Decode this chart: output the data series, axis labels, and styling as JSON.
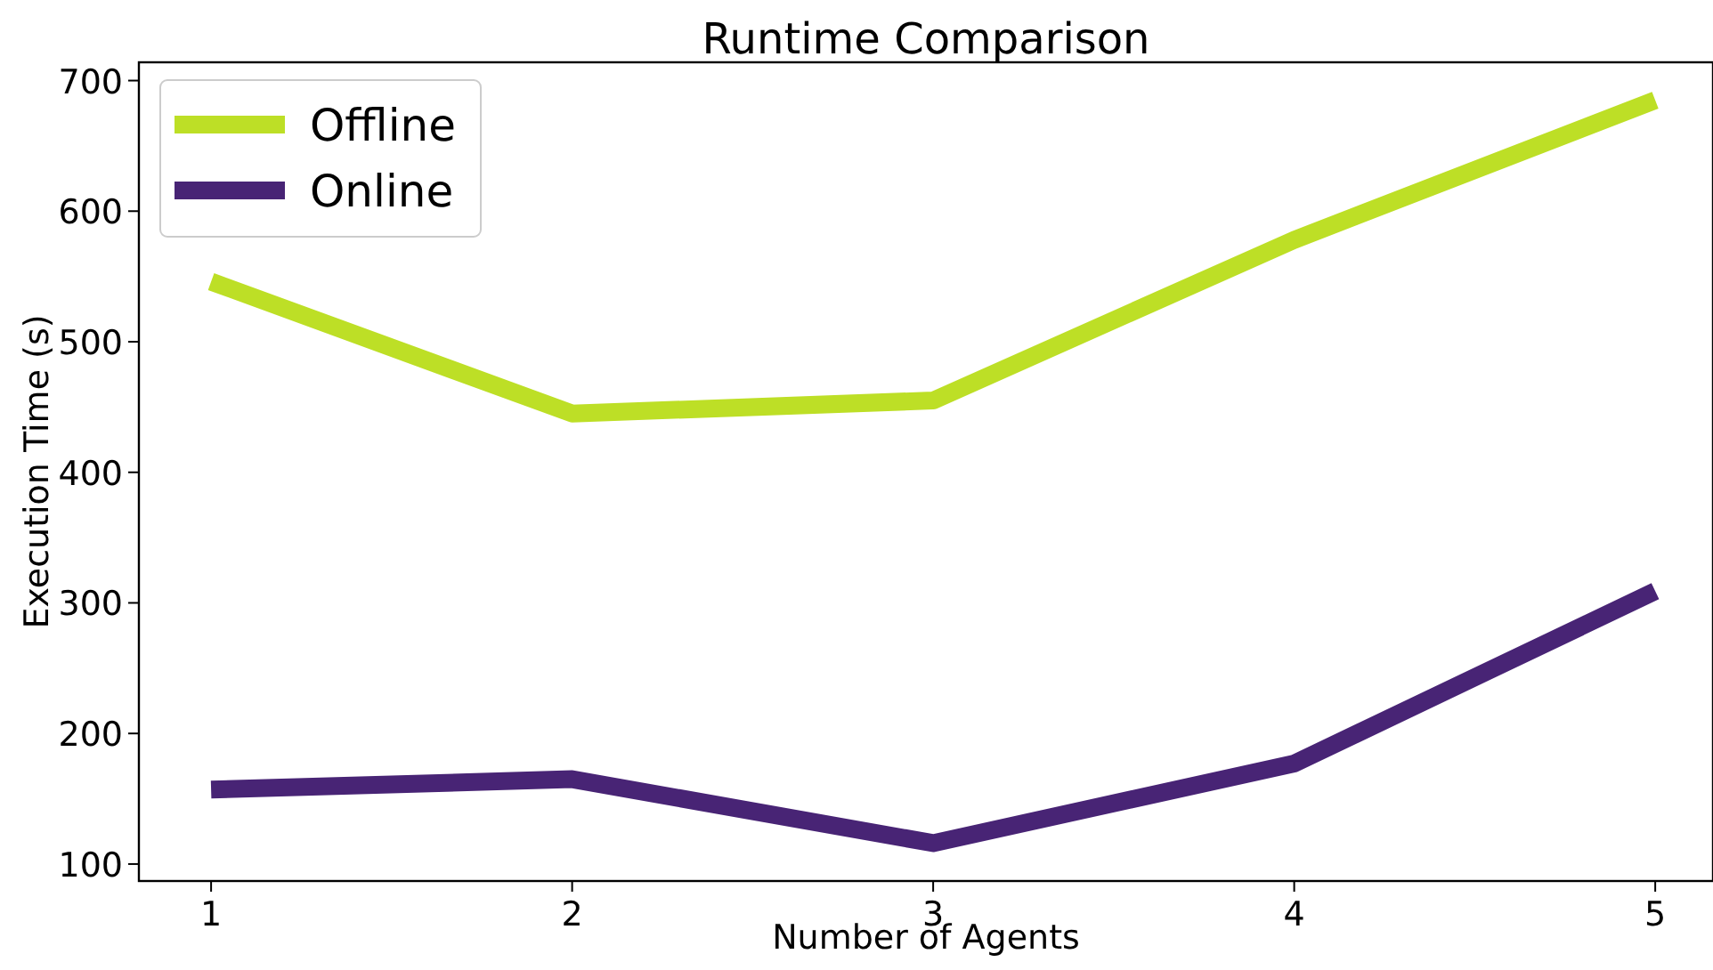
{
  "chart_data": {
    "type": "line",
    "title": "Runtime Comparison",
    "xlabel": "Number of Agents",
    "ylabel": "Execution Time (s)",
    "x": [
      1,
      2,
      3,
      4,
      5
    ],
    "series": [
      {
        "name": "Offline",
        "color": "#bddf26",
        "values": [
          546,
          445,
          455,
          578,
          685
        ]
      },
      {
        "name": "Online",
        "color": "#482475",
        "values": [
          157,
          165,
          116,
          177,
          309
        ]
      }
    ],
    "xlim": [
      0.8,
      5.16
    ],
    "xticks": [
      1,
      2,
      3,
      4,
      5
    ],
    "ylim": [
      87,
      714
    ],
    "yticks": [
      100,
      200,
      300,
      400,
      500,
      600,
      700
    ],
    "legend": "top left",
    "grid": false,
    "marker": "none",
    "line_style": "solid"
  }
}
